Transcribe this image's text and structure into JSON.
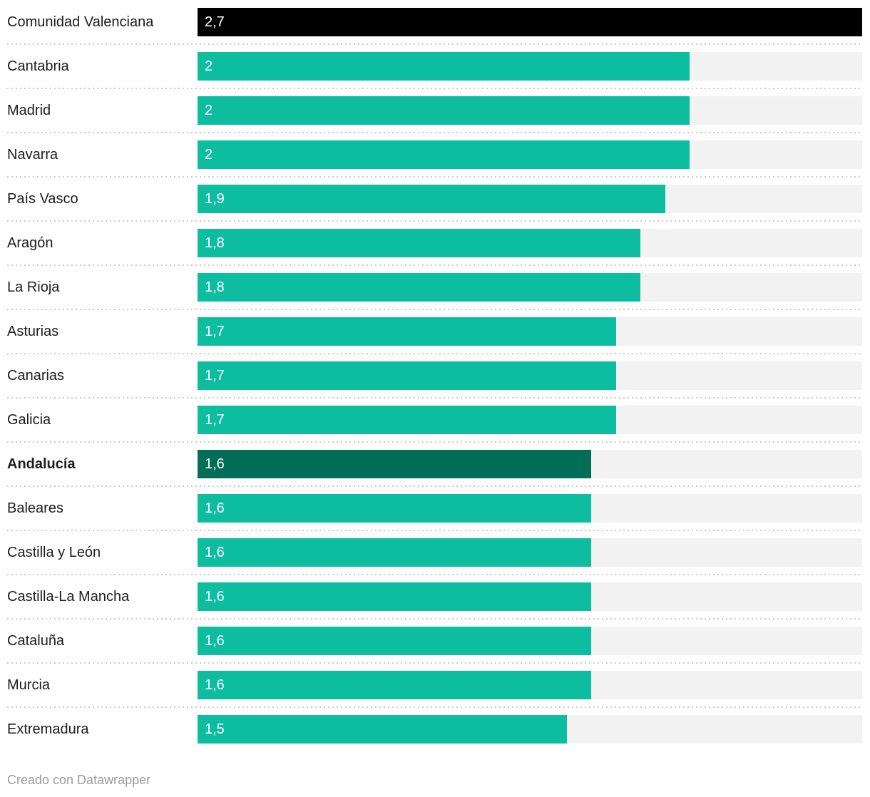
{
  "chart_data": {
    "type": "bar",
    "orientation": "horizontal",
    "title": "",
    "xlabel": "",
    "ylabel": "",
    "axis_max": 2.7,
    "grid": false,
    "legend": false,
    "categories": [
      "Comunidad Valenciana",
      "Cantabria",
      "Madrid",
      "Navarra",
      "País Vasco",
      "Aragón",
      "La Rioja",
      "Asturias",
      "Canarias",
      "Galicia",
      "Andalucía",
      "Baleares",
      "Castilla y León",
      "Castilla-La Mancha",
      "Cataluña",
      "Murcia",
      "Extremadura"
    ],
    "values": [
      2.7,
      2,
      2,
      2,
      1.9,
      1.8,
      1.8,
      1.7,
      1.7,
      1.7,
      1.6,
      1.6,
      1.6,
      1.6,
      1.6,
      1.6,
      1.5
    ],
    "rows": [
      {
        "category": "Comunidad Valenciana",
        "value": 2.7,
        "label": "2,7",
        "color": "black",
        "bold": false
      },
      {
        "category": "Cantabria",
        "value": 2,
        "label": "2",
        "color": "teal",
        "bold": false
      },
      {
        "category": "Madrid",
        "value": 2,
        "label": "2",
        "color": "teal",
        "bold": false
      },
      {
        "category": "Navarra",
        "value": 2,
        "label": "2",
        "color": "teal",
        "bold": false
      },
      {
        "category": "País Vasco",
        "value": 1.9,
        "label": "1,9",
        "color": "teal",
        "bold": false
      },
      {
        "category": "Aragón",
        "value": 1.8,
        "label": "1,8",
        "color": "teal",
        "bold": false
      },
      {
        "category": "La Rioja",
        "value": 1.8,
        "label": "1,8",
        "color": "teal",
        "bold": false
      },
      {
        "category": "Asturias",
        "value": 1.7,
        "label": "1,7",
        "color": "teal",
        "bold": false
      },
      {
        "category": "Canarias",
        "value": 1.7,
        "label": "1,7",
        "color": "teal",
        "bold": false
      },
      {
        "category": "Galicia",
        "value": 1.7,
        "label": "1,7",
        "color": "teal",
        "bold": false
      },
      {
        "category": "Andalucía",
        "value": 1.6,
        "label": "1,6",
        "color": "darkgreen",
        "bold": true
      },
      {
        "category": "Baleares",
        "value": 1.6,
        "label": "1,6",
        "color": "teal",
        "bold": false
      },
      {
        "category": "Castilla y León",
        "value": 1.6,
        "label": "1,6",
        "color": "teal",
        "bold": false
      },
      {
        "category": "Castilla-La Mancha",
        "value": 1.6,
        "label": "1,6",
        "color": "teal",
        "bold": false
      },
      {
        "category": "Cataluña",
        "value": 1.6,
        "label": "1,6",
        "color": "teal",
        "bold": false
      },
      {
        "category": "Murcia",
        "value": 1.6,
        "label": "1,6",
        "color": "teal",
        "bold": false
      },
      {
        "category": "Extremadura",
        "value": 1.5,
        "label": "1,5",
        "color": "teal",
        "bold": false
      }
    ]
  },
  "colors": {
    "bar_teal": "#0cbda0",
    "bar_black": "#000000",
    "bar_darkgreen": "#026e58",
    "track": "#f2f2f2",
    "category_label": "#1d1d1d",
    "value_label": "#ffffff",
    "separator": "#cccccc",
    "footer_text": "#9b9b9b"
  },
  "footer": {
    "attribution": "Creado con Datawrapper"
  }
}
